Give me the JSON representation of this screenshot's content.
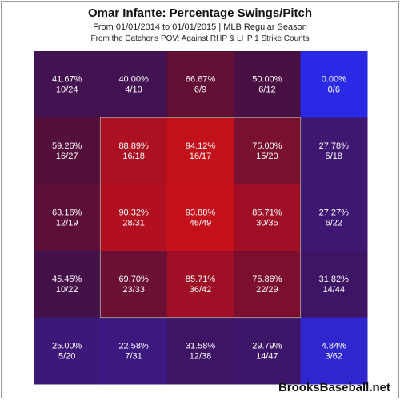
{
  "title": "Omar Infante: Percentage Swings/Pitch",
  "subtitle_line1": "From 01/01/2014 to 01/01/2015 | MLB Regular Season",
  "subtitle_line2": "From the Catcher's POV:  Against RHP & LHP    1 Strike Counts",
  "watermark": "BrooksBaseball.net",
  "colors": {
    "low": "#2a2ae6",
    "high": "#e01010",
    "zone_border": "#9a8f8f",
    "cell_text": "#ffffff"
  },
  "chart_data": {
    "type": "heatmap",
    "rows": 5,
    "cols": 5,
    "strike_zone": "inner 3x3 cells",
    "cells": [
      [
        {
          "pct": "41.67%",
          "frac": "10/24",
          "value": 41.67
        },
        {
          "pct": "40.00%",
          "frac": "4/10",
          "value": 40.0
        },
        {
          "pct": "66.67%",
          "frac": "6/9",
          "value": 66.67
        },
        {
          "pct": "50.00%",
          "frac": "6/12",
          "value": 50.0
        },
        {
          "pct": "0.00%",
          "frac": "0/6",
          "value": 0.0
        }
      ],
      [
        {
          "pct": "59.26%",
          "frac": "16/27",
          "value": 59.26
        },
        {
          "pct": "88.89%",
          "frac": "16/18",
          "value": 88.89
        },
        {
          "pct": "94.12%",
          "frac": "16/17",
          "value": 94.12
        },
        {
          "pct": "75.00%",
          "frac": "15/20",
          "value": 75.0
        },
        {
          "pct": "27.78%",
          "frac": "5/18",
          "value": 27.78
        }
      ],
      [
        {
          "pct": "63.16%",
          "frac": "12/19",
          "value": 63.16
        },
        {
          "pct": "90.32%",
          "frac": "28/31",
          "value": 90.32
        },
        {
          "pct": "93.88%",
          "frac": "46/49",
          "value": 93.88
        },
        {
          "pct": "85.71%",
          "frac": "30/35",
          "value": 85.71
        },
        {
          "pct": "27.27%",
          "frac": "6/22",
          "value": 27.27
        }
      ],
      [
        {
          "pct": "45.45%",
          "frac": "10/22",
          "value": 45.45
        },
        {
          "pct": "69.70%",
          "frac": "23/33",
          "value": 69.7
        },
        {
          "pct": "85.71%",
          "frac": "36/42",
          "value": 85.71
        },
        {
          "pct": "75.86%",
          "frac": "22/29",
          "value": 75.86
        },
        {
          "pct": "31.82%",
          "frac": "14/44",
          "value": 31.82
        }
      ],
      [
        {
          "pct": "25.00%",
          "frac": "5/20",
          "value": 25.0
        },
        {
          "pct": "22.58%",
          "frac": "7/31",
          "value": 22.58
        },
        {
          "pct": "31.58%",
          "frac": "12/38",
          "value": 31.58
        },
        {
          "pct": "29.79%",
          "frac": "14/47",
          "value": 29.79
        },
        {
          "pct": "4.84%",
          "frac": "3/62",
          "value": 4.84
        }
      ]
    ]
  }
}
